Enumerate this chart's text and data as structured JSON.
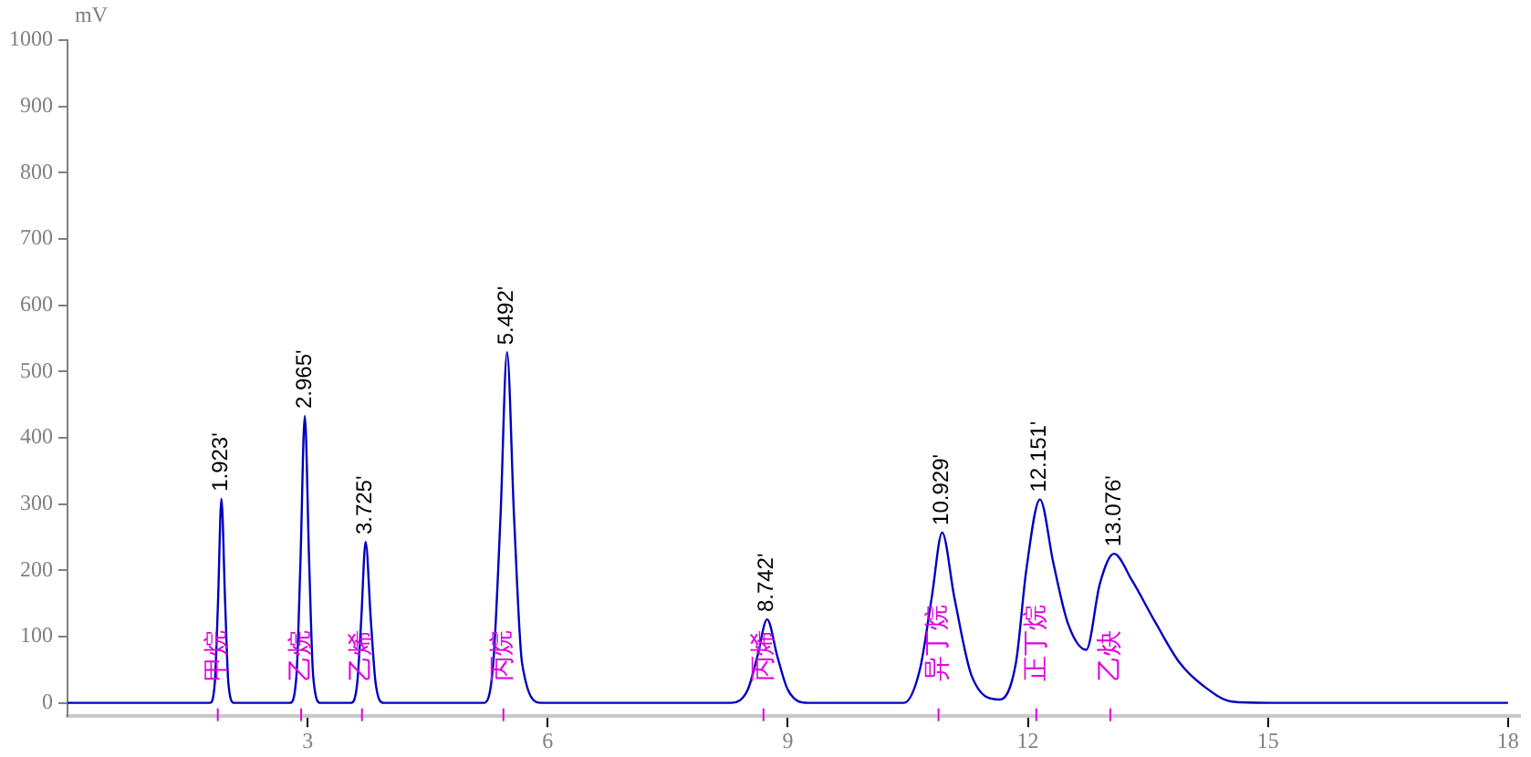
{
  "chart_data": {
    "type": "line",
    "ylabel": "mV",
    "xlim": [
      0,
      18.15
    ],
    "xticks": [
      3,
      6,
      9,
      12,
      15,
      18
    ],
    "ylim": [
      -20,
      1000
    ],
    "yticks": [
      0,
      100,
      200,
      300,
      400,
      500,
      600,
      700,
      800,
      900,
      1000
    ],
    "grid": false,
    "legend": false,
    "marker": "none",
    "line_style": "solid",
    "series": [
      {
        "color": "#0000c0",
        "x": [
          0,
          1.78,
          1.84,
          1.88,
          1.923,
          1.97,
          2.01,
          2.08,
          2.78,
          2.86,
          2.91,
          2.965,
          3.02,
          3.07,
          3.16,
          3.54,
          3.62,
          3.67,
          3.725,
          3.79,
          3.85,
          3.95,
          5.2,
          5.32,
          5.41,
          5.492,
          5.58,
          5.68,
          5.92,
          8.3,
          8.5,
          8.62,
          8.742,
          8.87,
          9.0,
          9.25,
          10.45,
          10.65,
          10.8,
          10.929,
          11.08,
          11.3,
          11.65,
          11.85,
          11.98,
          12.151,
          12.32,
          12.5,
          12.73,
          12.9,
          13.076,
          13.3,
          13.6,
          13.9,
          14.2,
          14.55,
          15,
          18
        ],
        "values": [
          0,
          0,
          30,
          150,
          308,
          150,
          30,
          0,
          0,
          40,
          210,
          433,
          210,
          40,
          0,
          0,
          30,
          125,
          243,
          125,
          30,
          0,
          0,
          60,
          280,
          529,
          280,
          60,
          0,
          0,
          20,
          70,
          126,
          70,
          20,
          0,
          0,
          50,
          160,
          257,
          160,
          40,
          5,
          60,
          200,
          307,
          210,
          120,
          80,
          180,
          225,
          185,
          120,
          60,
          25,
          2,
          0,
          0
        ]
      }
    ],
    "annotations": [
      {
        "text": "1.923'",
        "x": 1.923,
        "y": 308
      },
      {
        "text": "2.965'",
        "x": 2.965,
        "y": 433
      },
      {
        "text": "3.725'",
        "x": 3.725,
        "y": 243
      },
      {
        "text": "5.492'",
        "x": 5.492,
        "y": 529
      },
      {
        "text": "8.742'",
        "x": 8.742,
        "y": 126
      },
      {
        "text": "10.929'",
        "x": 10.929,
        "y": 257
      },
      {
        "text": "12.151'",
        "x": 12.151,
        "y": 307
      },
      {
        "text": "13.076'",
        "x": 13.076,
        "y": 225
      },
      "甲烷",
      "乙烷",
      "乙烯",
      "丙烷",
      "丙烯",
      "异丁烷",
      "正丁烷",
      "乙炔"
    ]
  }
}
